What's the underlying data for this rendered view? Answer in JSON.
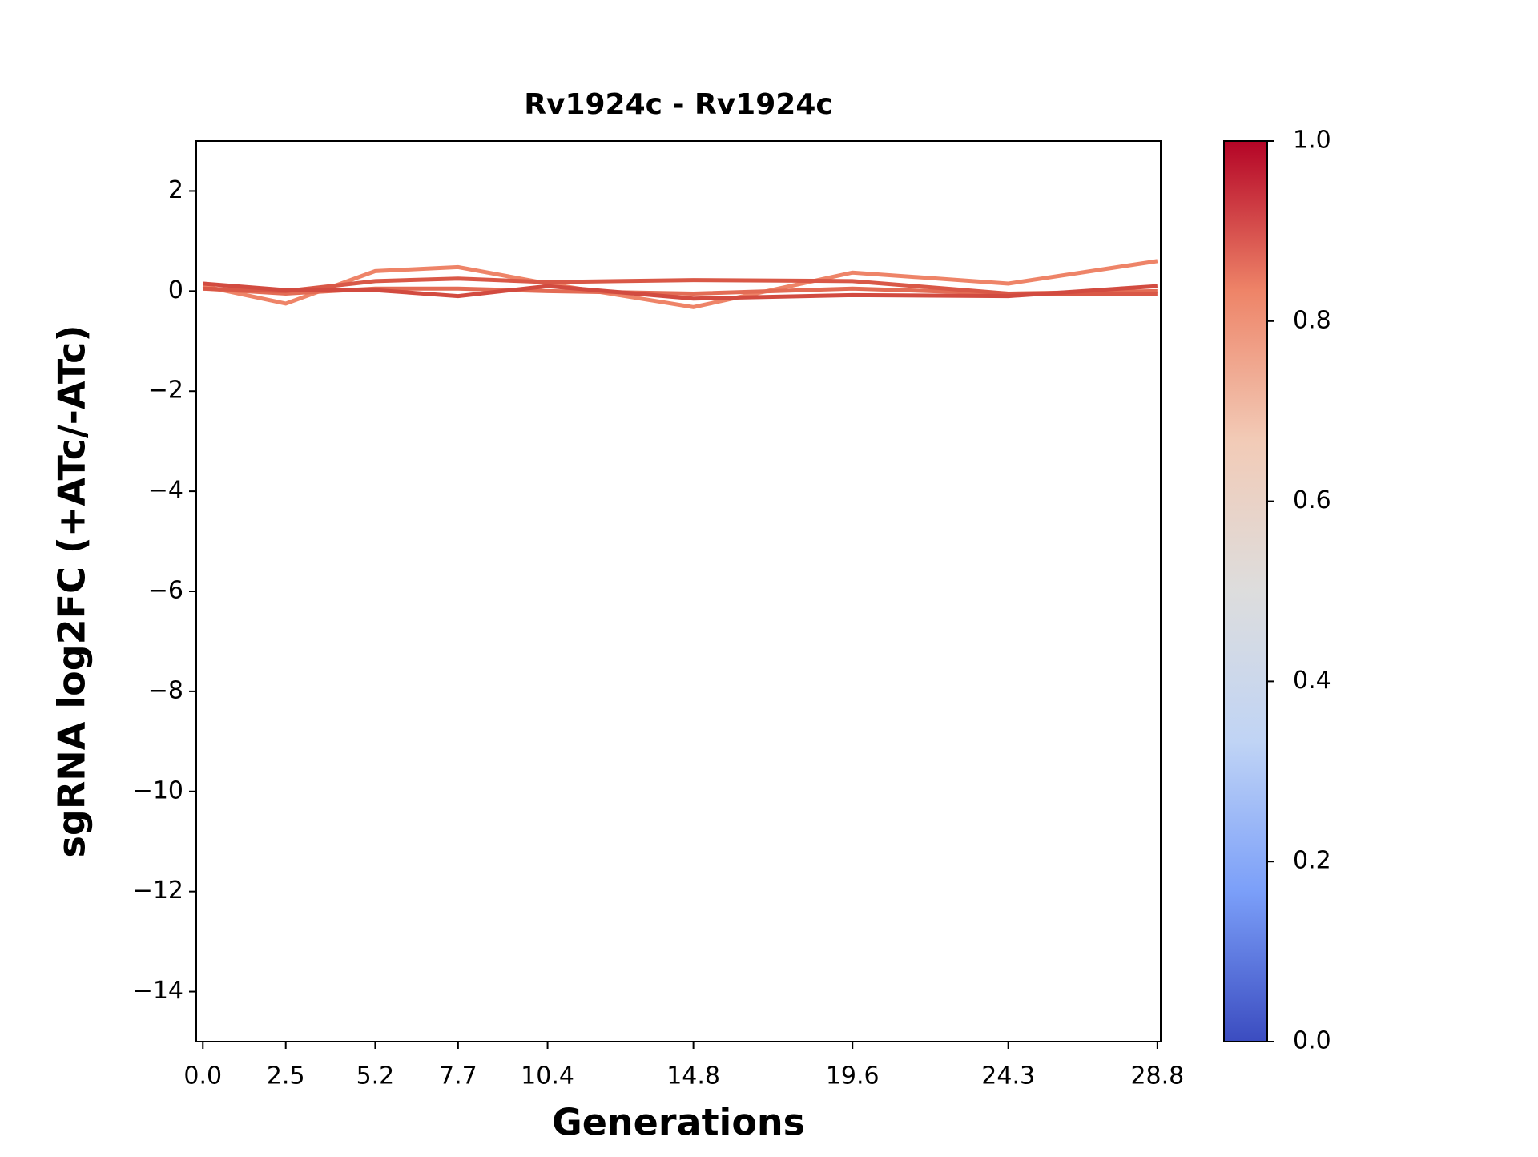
{
  "chart_data": {
    "type": "line",
    "title": "Rv1924c - Rv1924c",
    "xlabel": "Generations",
    "ylabel": "sgRNA log2FC (+ATc/-ATc)",
    "x": [
      0,
      2.5,
      5.2,
      7.7,
      10.4,
      14.8,
      19.6,
      24.3,
      28.8
    ],
    "xlim": [
      -0.2,
      28.9
    ],
    "xticks": [
      {
        "value": 0,
        "label": "0.0"
      },
      2.5,
      5.2,
      7.7,
      10.4,
      14.8,
      19.6,
      24.3,
      28.8
    ],
    "ylim": [
      -15,
      3
    ],
    "yticks": [
      {
        "value": -14,
        "label": "−14"
      },
      {
        "value": -12,
        "label": "−12"
      },
      {
        "value": -10,
        "label": "−10"
      },
      {
        "value": -8,
        "label": "−8"
      },
      {
        "value": -6,
        "label": "−6"
      },
      {
        "value": -4,
        "label": "−4"
      },
      {
        "value": -2,
        "label": "−2"
      },
      0,
      2
    ],
    "series": [
      {
        "color": "#ee8468",
        "values": [
          0.1,
          -0.25,
          0.4,
          0.48,
          0.15,
          -0.32,
          0.37,
          0.15,
          0.6
        ]
      },
      {
        "color": "#e36c55",
        "values": [
          0.05,
          -0.05,
          0.05,
          0.05,
          0.0,
          -0.05,
          0.05,
          -0.05,
          0.0
        ]
      },
      {
        "color": "#d95847",
        "values": [
          0.05,
          0.0,
          0.2,
          0.25,
          0.18,
          0.22,
          0.2,
          -0.05,
          -0.05
        ]
      },
      {
        "color": "#d24b40",
        "values": [
          0.15,
          0.02,
          0.02,
          -0.1,
          0.1,
          -0.15,
          -0.08,
          -0.1,
          0.1
        ]
      }
    ],
    "colorbar": {
      "colormap": "coolwarm",
      "lim": [
        0,
        1
      ],
      "colors": [
        "#3b4cc0",
        "#7b9ff9",
        "#c0d4f5",
        "#dddddd",
        "#f2cbb7",
        "#ee8468",
        "#b40426"
      ],
      "ticks": [
        {
          "value": 0,
          "label": "0.0"
        },
        0.2,
        0.4,
        0.6,
        0.8,
        {
          "value": 1,
          "label": "1.0"
        }
      ]
    }
  }
}
